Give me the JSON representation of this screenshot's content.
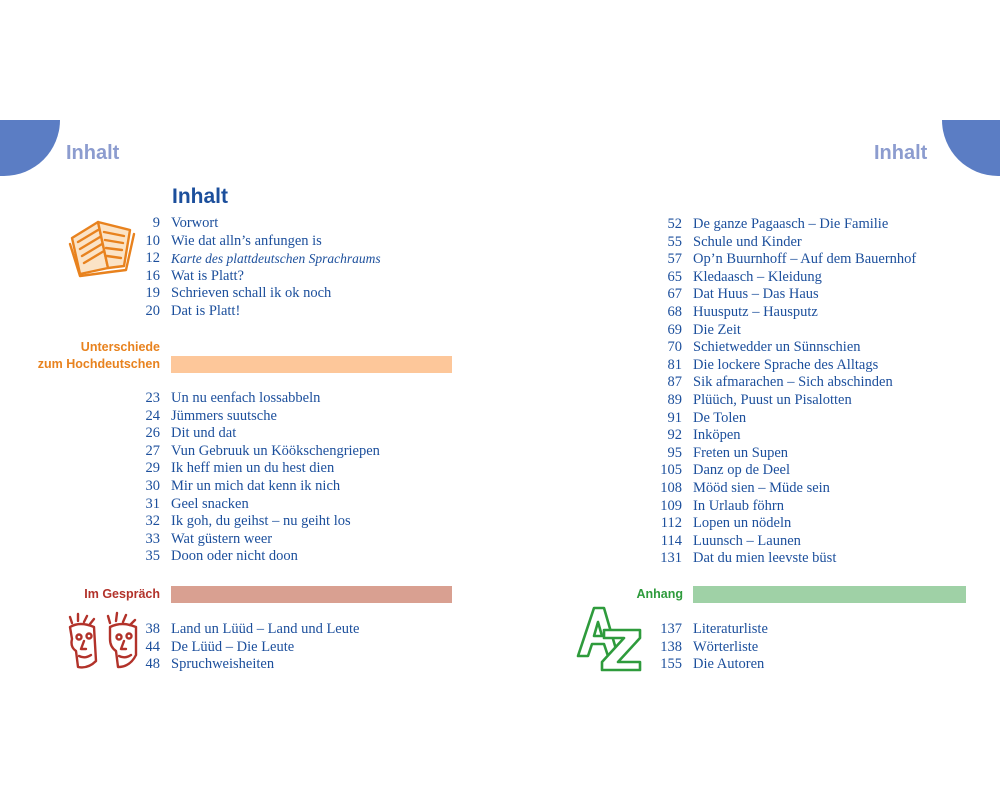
{
  "running_heads": {
    "left": "Inhalt",
    "right": "Inhalt"
  },
  "title": "Inhalt",
  "colors": {
    "text_blue": "#1c4f9c",
    "corner_blue": "#5b7dc4",
    "head_light_blue": "#8c9ccf",
    "orange_label": "#e8821e",
    "orange_bar": "#fdc79a",
    "red_label": "#b2322a",
    "red_bar": "#d9a091",
    "green_label": "#2e9b3c",
    "green_bar": "#9fd1a6"
  },
  "icons": {
    "book": "open-book-icon",
    "faces": "two-faces-icon",
    "az": "a-z-icon"
  },
  "groups": {
    "intro": [
      {
        "page": "9",
        "title": "Vorwort"
      },
      {
        "page": "10",
        "title": "Wie dat alln’s anfungen is"
      },
      {
        "page": "12",
        "title": "Karte des plattdeutschen Sprachraums",
        "italic": true
      },
      {
        "page": "16",
        "title": "Wat is Platt?"
      },
      {
        "page": "19",
        "title": "Schrieven schall ik ok noch"
      },
      {
        "page": "20",
        "title": "Dat is Platt!"
      }
    ],
    "unterschiede": {
      "label_line1": "Unterschiede",
      "label_line2": "zum Hochdeutschen",
      "entries": [
        {
          "page": "23",
          "title": "Un nu eenfach lossabbeln"
        },
        {
          "page": "24",
          "title": "Jümmers suutsche"
        },
        {
          "page": "26",
          "title": "Dit und dat"
        },
        {
          "page": "27",
          "title": "Vun Gebruuk un Köökschengriepen"
        },
        {
          "page": "29",
          "title": "Ik heff mien un du hest dien"
        },
        {
          "page": "30",
          "title": "Mir un mich dat kenn ik nich"
        },
        {
          "page": "31",
          "title": "Geel snacken"
        },
        {
          "page": "32",
          "title": "Ik goh, du geihst – nu geiht los"
        },
        {
          "page": "33",
          "title": "Wat güstern weer"
        },
        {
          "page": "35",
          "title": "Doon oder nicht doon"
        }
      ]
    },
    "gespraech": {
      "label": "Im Gespräch",
      "entries": [
        {
          "page": "38",
          "title": "Land un Lüüd – Land und Leute"
        },
        {
          "page": "44",
          "title": "De Lüüd – Die Leute"
        },
        {
          "page": "48",
          "title": "Spruchweisheiten"
        }
      ]
    },
    "right_list": [
      {
        "page": "52",
        "title": "De ganze Pagaasch – Die Familie"
      },
      {
        "page": "55",
        "title": "Schule und Kinder"
      },
      {
        "page": "57",
        "title": "Op’n Buurnhoff – Auf dem Bauernhof"
      },
      {
        "page": "65",
        "title": "Kledaasch – Kleidung"
      },
      {
        "page": "67",
        "title": "Dat Huus – Das Haus"
      },
      {
        "page": "68",
        "title": "Huusputz – Hausputz"
      },
      {
        "page": "69",
        "title": "Die Zeit"
      },
      {
        "page": "70",
        "title": "Schietwedder un Sünnschien"
      },
      {
        "page": "81",
        "title": "Die lockere Sprache des Alltags"
      },
      {
        "page": "87",
        "title": "Sik afmarachen – Sich abschinden"
      },
      {
        "page": "89",
        "title": "Plüüch, Puust un Pisalotten"
      },
      {
        "page": "91",
        "title": "De Tolen"
      },
      {
        "page": "92",
        "title": "Inköpen"
      },
      {
        "page": "95",
        "title": "Freten un Supen"
      },
      {
        "page": "105",
        "title": "Danz op de Deel"
      },
      {
        "page": "108",
        "title": "Mööd sien – Müde sein"
      },
      {
        "page": "109",
        "title": "In Urlaub föhrn"
      },
      {
        "page": "112",
        "title": "Lopen un nödeln"
      },
      {
        "page": "114",
        "title": "Luunsch – Launen"
      },
      {
        "page": "131",
        "title": "Dat du mien leevste büst"
      }
    ],
    "anhang": {
      "label": "Anhang",
      "entries": [
        {
          "page": "137",
          "title": "Literaturliste"
        },
        {
          "page": "138",
          "title": "Wörterliste"
        },
        {
          "page": "155",
          "title": "Die Autoren"
        }
      ]
    }
  }
}
